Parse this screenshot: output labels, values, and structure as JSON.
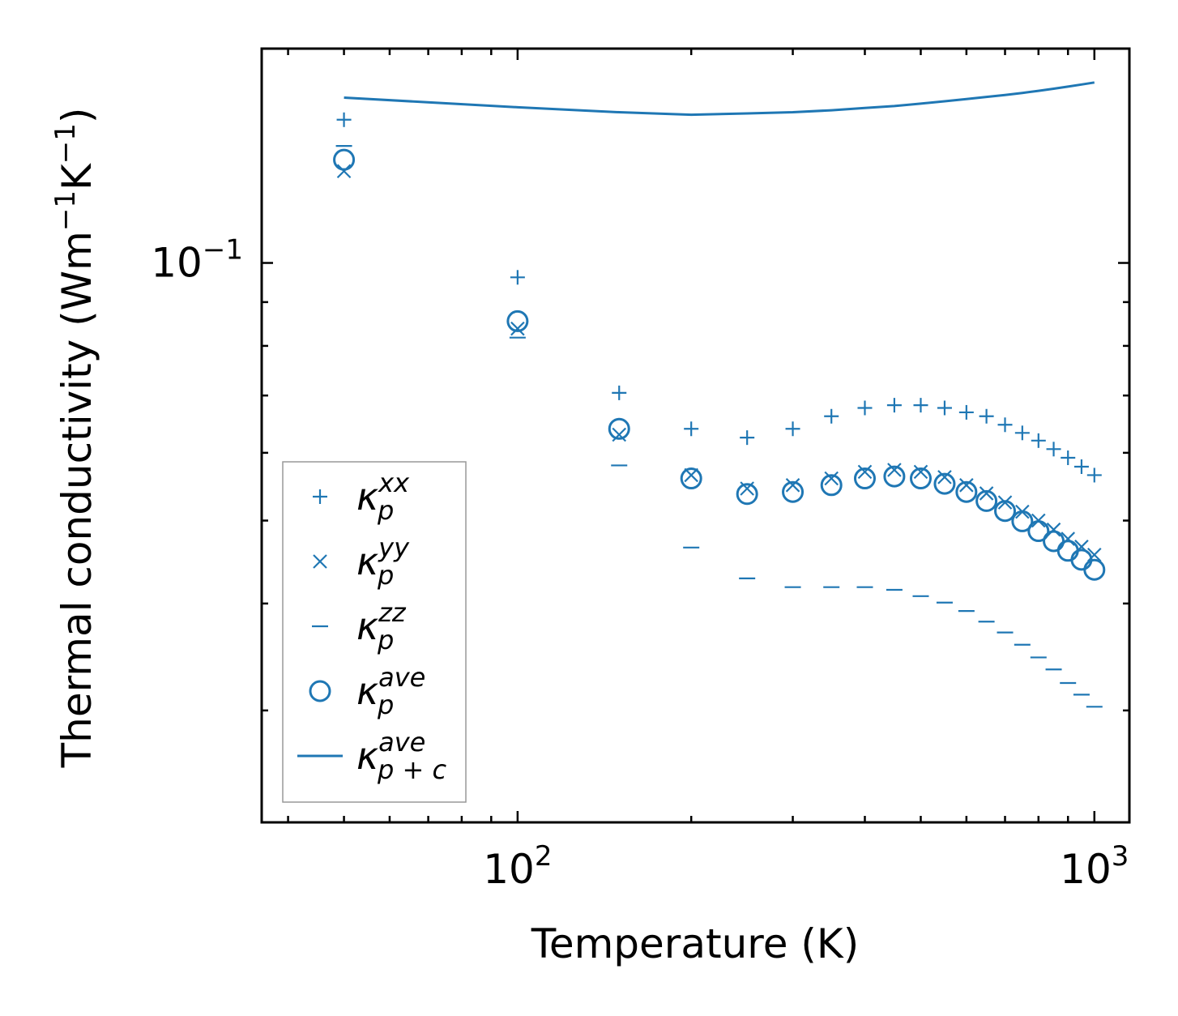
{
  "chart_data": {
    "type": "scatter",
    "title": "",
    "xlabel": "Temperature (K)",
    "ylabel": "Thermal conductivity (Wm",
    "ylabel_sup1": "−1",
    "ylabel_mid": "K",
    "ylabel_sup2": "−1",
    "ylabel_end": ")",
    "xscale": "log",
    "yscale": "log",
    "xlim": [
      36,
      1150
    ],
    "ylim": [
      0.0222,
      0.178
    ],
    "grid": false,
    "legend_position": "lower-left",
    "x_ticks": [
      {
        "value": 100,
        "base": "10",
        "exp": "2"
      },
      {
        "value": 1000,
        "base": "10",
        "exp": "3"
      }
    ],
    "y_ticks": [
      {
        "value": 0.1,
        "base": "10",
        "exp": "−1"
      }
    ],
    "series": [
      {
        "name": "kappa_p^xx",
        "symbol": "κ",
        "sub": "p",
        "sup": "xx",
        "marker": "plus",
        "x": [
          50,
          100,
          150,
          200,
          250,
          300,
          350,
          400,
          450,
          500,
          550,
          600,
          650,
          700,
          750,
          800,
          850,
          900,
          950,
          1000
        ],
        "y": [
          0.147,
          0.0962,
          0.0705,
          0.064,
          0.0625,
          0.064,
          0.0662,
          0.0677,
          0.0682,
          0.0682,
          0.0677,
          0.0669,
          0.0662,
          0.0647,
          0.0633,
          0.062,
          0.0606,
          0.0592,
          0.0578,
          0.0565
        ]
      },
      {
        "name": "kappa_p^yy",
        "symbol": "κ",
        "sub": "p",
        "sup": "yy",
        "marker": "x",
        "x": [
          50,
          100,
          150,
          200,
          250,
          300,
          350,
          400,
          450,
          500,
          550,
          600,
          650,
          700,
          750,
          800,
          850,
          900,
          950,
          1000
        ],
        "y": [
          0.128,
          0.0838,
          0.063,
          0.0565,
          0.0545,
          0.055,
          0.056,
          0.057,
          0.0573,
          0.057,
          0.0562,
          0.055,
          0.0538,
          0.0525,
          0.0512,
          0.05,
          0.0488,
          0.0476,
          0.0466,
          0.0456
        ]
      },
      {
        "name": "kappa_p^zz",
        "symbol": "κ",
        "sub": "p",
        "sup": "zz",
        "marker": "minus",
        "x": [
          50,
          100,
          150,
          200,
          250,
          300,
          350,
          400,
          450,
          500,
          550,
          600,
          650,
          700,
          750,
          800,
          850,
          900,
          950,
          1000
        ],
        "y": [
          0.137,
          0.0818,
          0.058,
          0.0465,
          0.0428,
          0.0418,
          0.0418,
          0.0418,
          0.0415,
          0.0408,
          0.0401,
          0.0392,
          0.0381,
          0.037,
          0.0358,
          0.0346,
          0.0335,
          0.0323,
          0.0313,
          0.0303
        ]
      },
      {
        "name": "kappa_p^ave",
        "symbol": "κ",
        "sub": "p",
        "sup": "ave",
        "marker": "circle",
        "x": [
          50,
          100,
          150,
          200,
          250,
          300,
          350,
          400,
          450,
          500,
          550,
          600,
          650,
          700,
          750,
          800,
          850,
          900,
          950,
          1000
        ],
        "y": [
          0.132,
          0.0855,
          0.064,
          0.056,
          0.0537,
          0.054,
          0.055,
          0.056,
          0.0563,
          0.056,
          0.0552,
          0.054,
          0.0527,
          0.0513,
          0.0499,
          0.0486,
          0.0473,
          0.0461,
          0.045,
          0.0438
        ]
      },
      {
        "name": "kappa_p+c^ave",
        "symbol": "κ",
        "sub": "p + c",
        "sup": "ave",
        "marker": "line",
        "x": [
          50,
          100,
          150,
          200,
          250,
          300,
          350,
          400,
          450,
          500,
          550,
          600,
          650,
          700,
          750,
          800,
          850,
          900,
          950,
          1000
        ],
        "y": [
          0.156,
          0.152,
          0.15,
          0.149,
          0.1495,
          0.15,
          0.1508,
          0.1517,
          0.1525,
          0.1535,
          0.1545,
          0.1554,
          0.1563,
          0.1571,
          0.158,
          0.1589,
          0.1598,
          0.1607,
          0.1616,
          0.1625
        ]
      }
    ]
  },
  "colors": {
    "series": "#1f77b4",
    "axis": "#000000",
    "legend_border": "#999999"
  }
}
